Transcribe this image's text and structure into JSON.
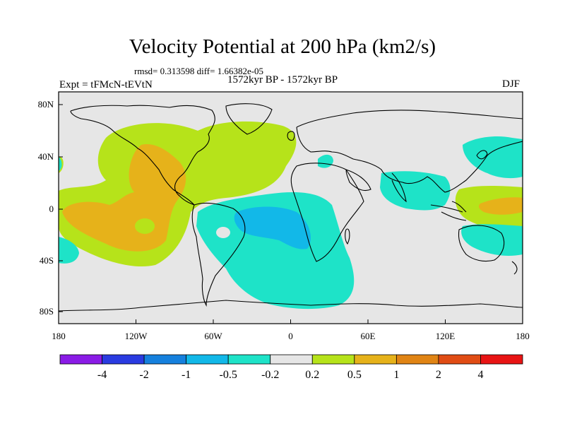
{
  "title": "Velocity Potential at 200 hPa (km2/s)",
  "stats_line": "rmsd= 0.313598 diff= 1.66382e-05",
  "period": "1572kyr BP - 1572kyr BP",
  "experiment": "Expt = tFMcN-tEVtN",
  "season": "DJF",
  "axes": {
    "x_ticks": [
      "180",
      "120W",
      "60W",
      "0",
      "60E",
      "120E",
      "180"
    ],
    "y_ticks": [
      "80N",
      "40N",
      "0",
      "40S",
      "80S"
    ]
  },
  "colorbar": {
    "labels": [
      "-4",
      "-2",
      "-1",
      "-0.5",
      "-0.2",
      "0.2",
      "0.5",
      "1",
      "2",
      "4"
    ],
    "colors": [
      "#8a1be6",
      "#2a3be0",
      "#1580dd",
      "#12b8e8",
      "#1ee3c8",
      "#e6e6e6",
      "#b6e31a",
      "#e6b21a",
      "#e08414",
      "#e04c14",
      "#e81414"
    ]
  },
  "chart_data": {
    "type": "heatmap",
    "title": "Velocity Potential at 200 hPa (km2/s)",
    "projection": "cylindrical equidistant",
    "lon_range": [
      -180,
      180
    ],
    "lat_range": [
      -90,
      90
    ],
    "levels": [
      -4,
      -2,
      -1,
      -0.5,
      -0.2,
      0.2,
      0.5,
      1,
      2,
      4
    ],
    "regions": [
      {
        "name": "north-atlantic-america-positive",
        "value_class": "0.2 to 0.5",
        "center_lon": -70,
        "center_lat": 30
      },
      {
        "name": "east-pacific-positive-core",
        "value_class": "0.5 to 1",
        "center_lon": -120,
        "center_lat": 0
      },
      {
        "name": "south-atlantic-negative",
        "value_class": "-0.5 to -0.2",
        "center_lon": 0,
        "center_lat": -30
      },
      {
        "name": "south-atlantic-core",
        "value_class": "-1 to -0.5",
        "center_lon": -5,
        "center_lat": -15
      },
      {
        "name": "asia-negative",
        "value_class": "-0.5 to -0.2",
        "center_lon": 100,
        "center_lat": 20
      },
      {
        "name": "west-pacific-positive",
        "value_class": "0.2 to 0.5",
        "center_lon": 165,
        "center_lat": 0
      }
    ]
  }
}
